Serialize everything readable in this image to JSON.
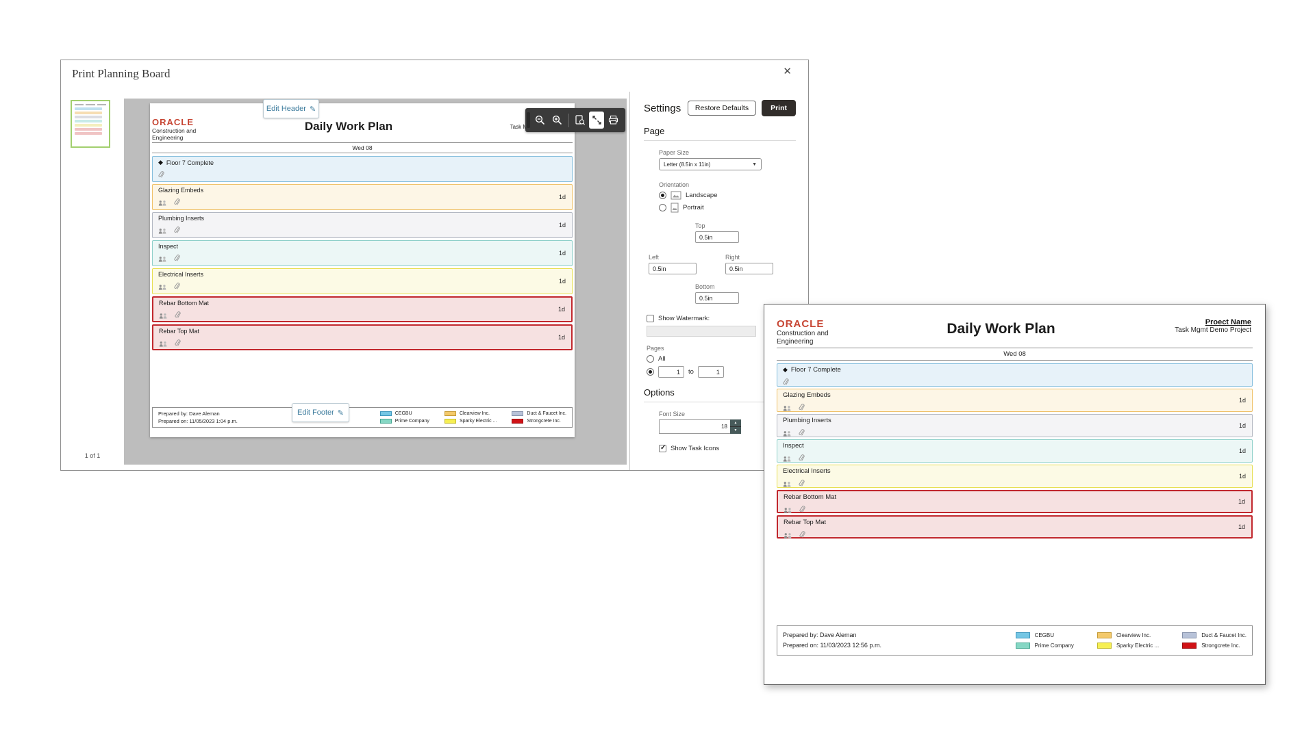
{
  "dialog": {
    "title": "Print Planning Board",
    "close_glyph": "✕",
    "page_indicator": "1 of 1"
  },
  "preview": {
    "edit_header": "Edit Header",
    "edit_footer": "Edit Footer",
    "pencil": "✎"
  },
  "toolbar": {
    "buttons": [
      "zoom-out",
      "zoom-in",
      "fit-height",
      "fit-width",
      "print"
    ],
    "active": "fit-width"
  },
  "document": {
    "brand": "ORACLE",
    "brand_line1": "Construction and",
    "brand_line2": "Engineering",
    "title": "Daily Work Plan",
    "project_label": "Proect Name",
    "project_name": "Task Mgmt Demo Project",
    "date": "Wed 08",
    "milestone_marker": "◆",
    "tasks": [
      {
        "name": "Floor 7 Complete",
        "duration": "",
        "color": "blue",
        "milestone": true,
        "icons": [
          "paperclip"
        ]
      },
      {
        "name": "Glazing Embeds",
        "duration": "1d",
        "color": "orange",
        "milestone": false,
        "icons": [
          "crew",
          "paperclip"
        ]
      },
      {
        "name": "Plumbing Inserts",
        "duration": "1d",
        "color": "gray",
        "milestone": false,
        "icons": [
          "crew",
          "paperclip"
        ]
      },
      {
        "name": "Inspect",
        "duration": "1d",
        "color": "teal",
        "milestone": false,
        "icons": [
          "crew",
          "paperclip"
        ]
      },
      {
        "name": "Electrical Inserts",
        "duration": "1d",
        "color": "yellow",
        "milestone": false,
        "icons": [
          "crew",
          "paperclip"
        ]
      },
      {
        "name": "Rebar Bottom Mat",
        "duration": "1d",
        "color": "red",
        "milestone": false,
        "icons": [
          "crew",
          "paperclip"
        ]
      },
      {
        "name": "Rebar Top Mat",
        "duration": "1d",
        "color": "red",
        "milestone": false,
        "icons": [
          "crew",
          "paperclip"
        ]
      }
    ],
    "row_colors": {
      "blue": {
        "bg": "#e7f2f9",
        "border": "#85bedd"
      },
      "orange": {
        "bg": "#fdf6e6",
        "border": "#efc169"
      },
      "gray": {
        "bg": "#f4f4f6",
        "border": "#b3b8c2"
      },
      "teal": {
        "bg": "#ecf7f6",
        "border": "#8fd0ca"
      },
      "yellow": {
        "bg": "#fcfae5",
        "border": "#e7df52"
      },
      "red": {
        "bg": "#f6e1e1",
        "border": "#c1272d"
      }
    },
    "legend": [
      {
        "label": "CEGBU",
        "color": "#74c6e4",
        "border": "#3e97bd"
      },
      {
        "label": "Prime Company",
        "color": "#86d7c4",
        "border": "#47a893"
      },
      {
        "label": "Clearview Inc.",
        "color": "#f3c96b",
        "border": "#c59a35"
      },
      {
        "label": "Sparky Electric ...",
        "color": "#f6ef53",
        "border": "#c2b92c"
      },
      {
        "label": "Duct & Faucet Inc.",
        "color": "#b7c2d8",
        "border": "#8793ac"
      },
      {
        "label": "Strongcrete Inc.",
        "color": "#d01216",
        "border": "#9b0c0f"
      }
    ],
    "footers": {
      "preview": {
        "prepared_by": "Prepared by: Dave Aleman",
        "prepared_on": "Prepared on: 11/05/2023 1:04 p.m."
      },
      "window": {
        "prepared_by": "Prepared by: Dave Aleman",
        "prepared_on": "Prepared on: 11/03/2023 12:56 p.m."
      }
    }
  },
  "settings": {
    "title": "Settings",
    "restore_defaults": "Restore Defaults",
    "print": "Print",
    "page_section": "Page",
    "paper_size_label": "Paper Size",
    "paper_size_value": "Letter (8.5in x 11in)",
    "orientation_label": "Orientation",
    "landscape": "Landscape",
    "portrait": "Portrait",
    "margin_top_label": "Top",
    "margin_top": "0.5in",
    "margin_left_label": "Left",
    "margin_left": "0.5in",
    "margin_right_label": "Right",
    "margin_right": "0.5in",
    "margin_bottom_label": "Bottom",
    "margin_bottom": "0.5in",
    "show_watermark": "Show Watermark:",
    "pages_label": "Pages",
    "pages_all": "All",
    "page_from": "1",
    "page_to_word": "to",
    "page_to": "1",
    "options_section": "Options",
    "font_size_label": "Font Size",
    "font_size": "18",
    "show_task_icons": "Show Task Icons"
  }
}
